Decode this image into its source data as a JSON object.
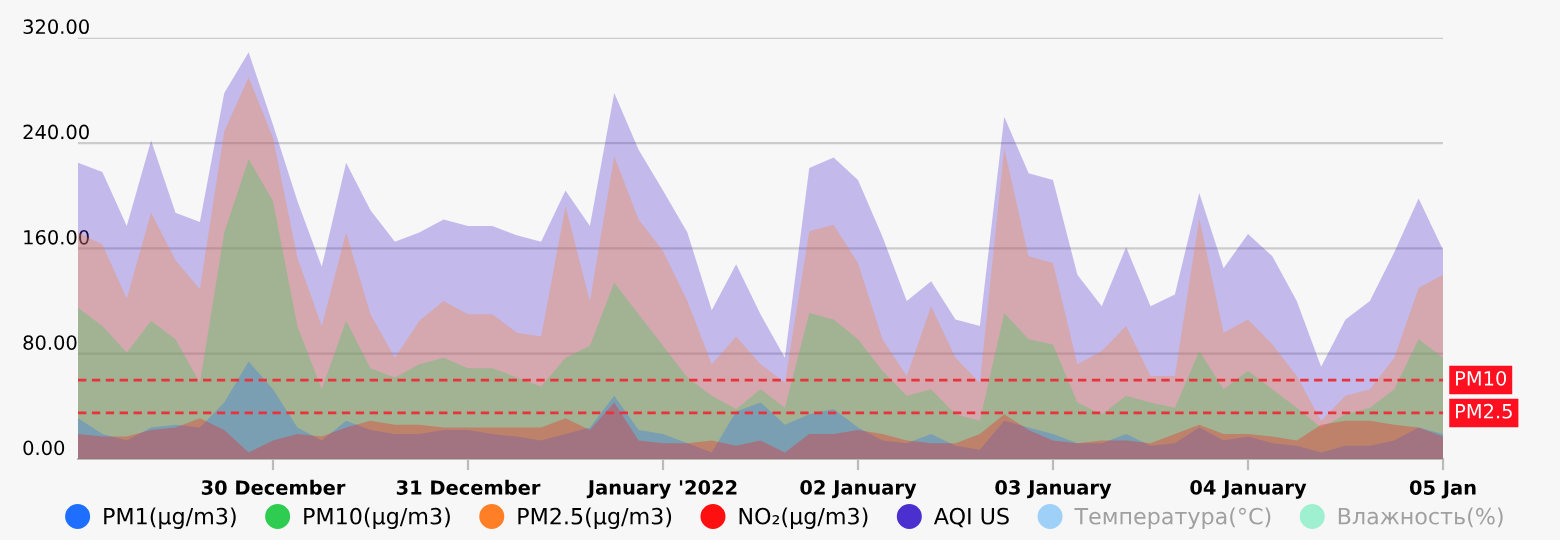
{
  "chart_data": {
    "type": "area",
    "x": [
      "2021-12-29T00:00",
      "2021-12-29T03:00",
      "2021-12-29T06:00",
      "2021-12-29T09:00",
      "2021-12-29T12:00",
      "2021-12-29T15:00",
      "2021-12-29T18:00",
      "2021-12-29T21:00",
      "2021-12-30T00:00",
      "2021-12-30T03:00",
      "2021-12-30T06:00",
      "2021-12-30T09:00",
      "2021-12-30T12:00",
      "2021-12-30T15:00",
      "2021-12-30T18:00",
      "2021-12-30T21:00",
      "2021-12-31T00:00",
      "2021-12-31T03:00",
      "2021-12-31T06:00",
      "2021-12-31T09:00",
      "2021-12-31T12:00",
      "2021-12-31T15:00",
      "2021-12-31T18:00",
      "2021-12-31T21:00",
      "2022-01-01T00:00",
      "2022-01-01T03:00",
      "2022-01-01T06:00",
      "2022-01-01T09:00",
      "2022-01-01T12:00",
      "2022-01-01T15:00",
      "2022-01-01T18:00",
      "2022-01-01T21:00",
      "2022-01-02T00:00",
      "2022-01-02T03:00",
      "2022-01-02T06:00",
      "2022-01-02T09:00",
      "2022-01-02T12:00",
      "2022-01-02T15:00",
      "2022-01-02T18:00",
      "2022-01-02T21:00",
      "2022-01-03T00:00",
      "2022-01-03T03:00",
      "2022-01-03T06:00",
      "2022-01-03T09:00",
      "2022-01-03T12:00",
      "2022-01-03T15:00",
      "2022-01-03T18:00",
      "2022-01-03T21:00",
      "2022-01-04T00:00",
      "2022-01-04T03:00",
      "2022-01-04T06:00",
      "2022-01-04T09:00",
      "2022-01-04T12:00",
      "2022-01-04T15:00",
      "2022-01-04T18:00",
      "2022-01-04T21:00",
      "2022-01-05T00:00"
    ],
    "series": [
      {
        "name": "PM1(μg/m3)",
        "color": "#1e6fff",
        "values": [
          31,
          19,
          14,
          24,
          26,
          24,
          43,
          74,
          53,
          24,
          14,
          29,
          22,
          19,
          19,
          22,
          22,
          19,
          17,
          14,
          19,
          24,
          48,
          22,
          19,
          12,
          5,
          36,
          43,
          26,
          34,
          38,
          24,
          14,
          12,
          19,
          10,
          7,
          29,
          24,
          19,
          12,
          12,
          19,
          10,
          12,
          24,
          14,
          17,
          12,
          10,
          5,
          10,
          10,
          14,
          24,
          19
        ]
      },
      {
        "name": "PM10(μg/m3)",
        "color": "#2ecc50",
        "values": [
          115,
          101,
          81,
          105,
          91,
          58,
          172,
          228,
          196,
          101,
          53,
          105,
          69,
          62,
          72,
          77,
          69,
          69,
          62,
          55,
          77,
          86,
          134,
          110,
          86,
          62,
          48,
          38,
          53,
          39,
          111,
          106,
          91,
          67,
          48,
          53,
          34,
          29,
          111,
          91,
          87,
          43,
          34,
          48,
          43,
          39,
          82,
          53,
          67,
          53,
          39,
          24,
          34,
          39,
          53,
          91,
          77
        ]
      },
      {
        "name": "PM2.5(μg/m3)",
        "color": "#ff7f27",
        "values": [
          172,
          163,
          122,
          187,
          151,
          129,
          249,
          290,
          244,
          153,
          101,
          172,
          110,
          77,
          105,
          120,
          110,
          110,
          96,
          93,
          192,
          120,
          230,
          182,
          158,
          120,
          72,
          93,
          72,
          58,
          173,
          178,
          149,
          91,
          63,
          116,
          77,
          58,
          236,
          154,
          149,
          72,
          82,
          101,
          63,
          63,
          183,
          96,
          106,
          87,
          63,
          29,
          48,
          53,
          77,
          130,
          140
        ]
      },
      {
        "name": "NO₂(μg/m3)",
        "color": "#ff1010",
        "values": [
          19,
          17,
          17,
          22,
          24,
          31,
          22,
          5,
          14,
          19,
          17,
          24,
          29,
          26,
          26,
          24,
          24,
          24,
          24,
          24,
          31,
          22,
          43,
          14,
          12,
          12,
          14,
          10,
          14,
          5,
          19,
          19,
          22,
          19,
          14,
          12,
          12,
          19,
          34,
          22,
          14,
          12,
          14,
          14,
          12,
          19,
          26,
          19,
          19,
          17,
          14,
          26,
          29,
          29,
          26,
          24,
          17
        ]
      },
      {
        "name": "AQI US",
        "color": "#4b2fcf",
        "values": [
          225,
          218,
          177,
          242,
          187,
          180,
          278,
          309,
          254,
          196,
          146,
          225,
          189,
          165,
          172,
          182,
          177,
          177,
          170,
          165,
          204,
          177,
          278,
          235,
          204,
          172,
          113,
          148,
          110,
          77,
          221,
          229,
          212,
          169,
          120,
          135,
          106,
          101,
          260,
          217,
          212,
          140,
          116,
          161,
          116,
          125,
          202,
          145,
          171,
          154,
          120,
          70,
          106,
          120,
          157,
          198,
          159
        ]
      },
      {
        "name": "Температура(°C)",
        "color": "#9fd0f7",
        "values": [
          null,
          null,
          null,
          null,
          null,
          null,
          null,
          null,
          null,
          null,
          null,
          null,
          null,
          null,
          null,
          null,
          null,
          null,
          null,
          null,
          null,
          null,
          null,
          null,
          null,
          null,
          null,
          null,
          null,
          null,
          null,
          null,
          null,
          null,
          null,
          null,
          null,
          null,
          null,
          null,
          null,
          null,
          null,
          null,
          null,
          null,
          null,
          null,
          null,
          null,
          null,
          null,
          null,
          null,
          null,
          null,
          null
        ]
      },
      {
        "name": "Влажность(%)",
        "color": "#9ff0d0",
        "values": [
          null,
          null,
          null,
          null,
          null,
          null,
          null,
          null,
          null,
          null,
          null,
          null,
          null,
          null,
          null,
          null,
          null,
          null,
          null,
          null,
          null,
          null,
          null,
          null,
          null,
          null,
          null,
          null,
          null,
          null,
          null,
          null,
          null,
          null,
          null,
          null,
          null,
          null,
          null,
          null,
          null,
          null,
          null,
          null,
          null,
          null,
          null,
          null,
          null,
          null,
          null,
          null,
          null,
          null,
          null,
          null,
          null
        ]
      }
    ],
    "xlim": [
      "2021-12-29T00:00",
      "2022-01-05T00:00"
    ],
    "xticks": [
      {
        "value": "2021-12-30",
        "label": "30 December"
      },
      {
        "value": "2021-12-31",
        "label": "31 December"
      },
      {
        "value": "2022-01-01",
        "label": "January '2022"
      },
      {
        "value": "2022-01-02",
        "label": "02 January"
      },
      {
        "value": "2022-01-03",
        "label": "03 January"
      },
      {
        "value": "2022-01-04",
        "label": "04 January"
      },
      {
        "value": "2022-01-05",
        "label": "05 Jan"
      }
    ],
    "ylim": [
      0,
      320
    ],
    "yticks": [
      {
        "value": 0,
        "label": "0.00"
      },
      {
        "value": 80,
        "label": "80.00"
      },
      {
        "value": 160,
        "label": "160.00"
      },
      {
        "value": 240,
        "label": "240.00"
      },
      {
        "value": 320,
        "label": "320.00"
      }
    ],
    "ref_lines": [
      {
        "axis": "y",
        "value": 60,
        "label": "PM10",
        "color": "#e8323c",
        "line_style": "dashed"
      },
      {
        "axis": "y",
        "value": 35,
        "label": "PM2.5",
        "color": "#e8323c",
        "line_style": "dashed"
      }
    ],
    "grid": "y",
    "legend": "bottom"
  }
}
